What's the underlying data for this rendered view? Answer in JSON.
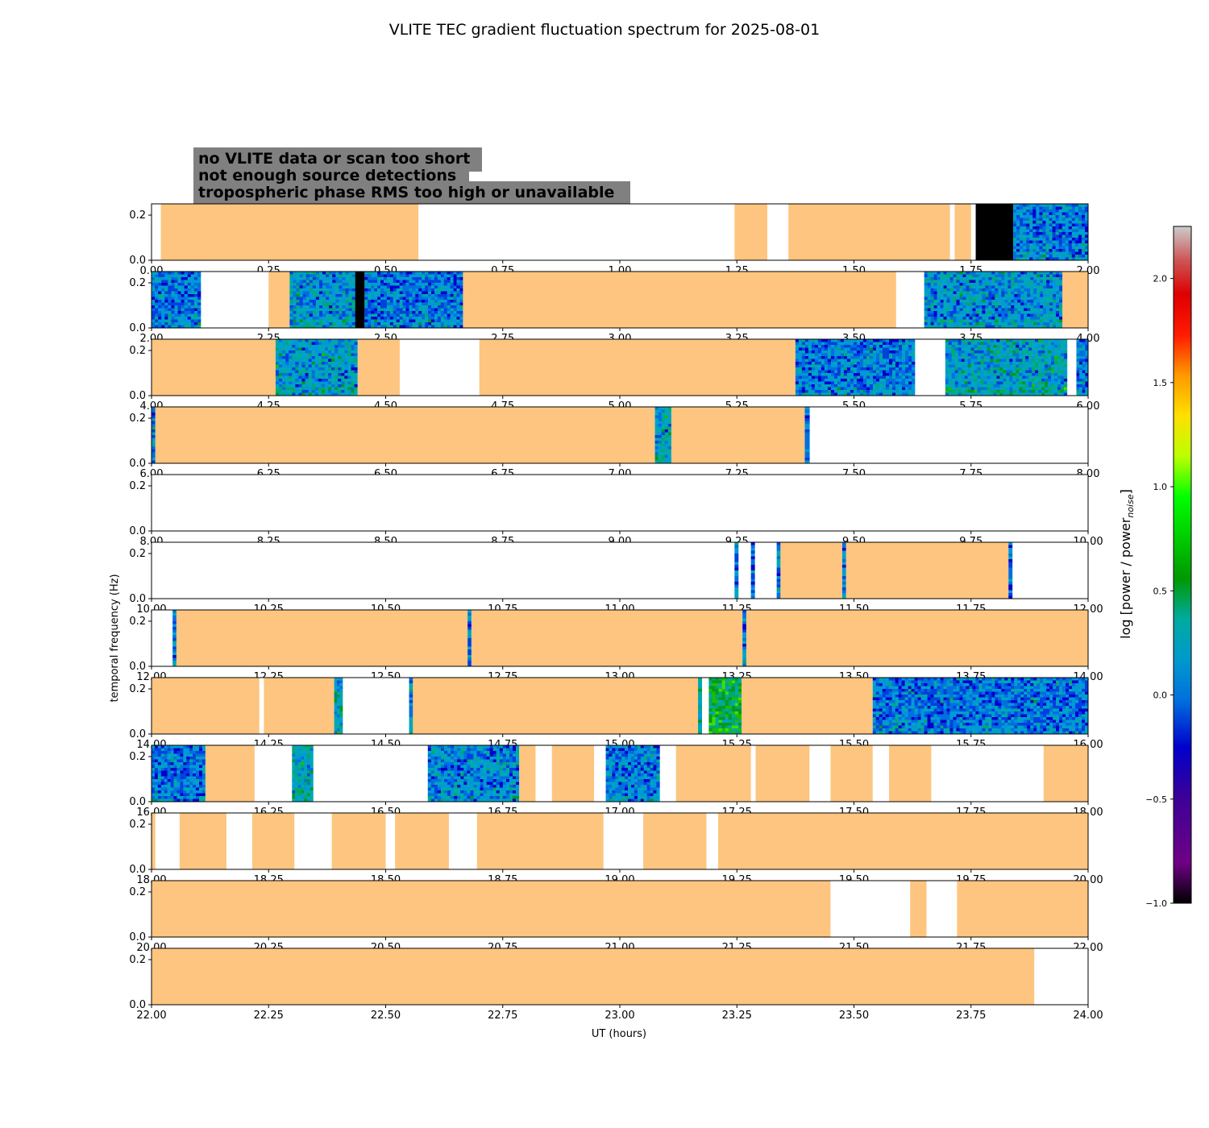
{
  "chart_data": {
    "type": "heatmap",
    "title": "VLITE TEC gradient fluctuation spectrum for 2025-08-01",
    "xlabel": "UT (hours)",
    "ylabel": "temporal frequency (Hz)",
    "ylim": [
      0.0,
      0.25
    ],
    "ytick_labels": [
      "0.0",
      "0.2"
    ],
    "ytick_values": [
      0.0,
      0.2
    ],
    "legend_items": [
      {
        "label": "no VLITE data or scan too short",
        "text_color": "#ffffff",
        "category": "white"
      },
      {
        "label": "not enough source detections",
        "text_color": "#000000",
        "category": "black"
      },
      {
        "label": "tropospheric phase RMS too high or unavailable",
        "text_color": "#fdc57f",
        "category": "orange"
      }
    ],
    "legend_box_color": "#808080",
    "colorbar": {
      "label_main": "log [power / power",
      "label_sub": "noise",
      "label_end": "]",
      "range": [
        -1.0,
        2.25
      ],
      "tick_values": [
        -1.0,
        -0.5,
        0.0,
        0.5,
        1.0,
        1.5,
        2.0
      ],
      "tick_labels": [
        "−1.0",
        "−0.5",
        "0.0",
        "0.5",
        "1.0",
        "1.5",
        "2.0"
      ],
      "colormap": "nipy_spectral"
    },
    "colors": {
      "no_data": "#ffffff",
      "few_detections": "#000000",
      "tropo_bad": "#fdc57f"
    },
    "panels": [
      {
        "start": 0,
        "end": 2,
        "tick_labels": [
          "0.00",
          "0.25",
          "0.50",
          "0.75",
          "1.00",
          "1.25",
          "1.50",
          "1.75",
          "2.00"
        ],
        "segments": [
          {
            "from": 0.02,
            "to": 0.57,
            "kind": "orange"
          },
          {
            "from": 1.245,
            "to": 1.315,
            "kind": "orange"
          },
          {
            "from": 1.36,
            "to": 1.705,
            "kind": "orange"
          },
          {
            "from": 1.715,
            "to": 1.75,
            "kind": "orange"
          },
          {
            "from": 1.76,
            "to": 1.84,
            "kind": "black"
          },
          {
            "from": 1.84,
            "to": 2.0,
            "kind": "spectrum",
            "level": 0.1
          }
        ]
      },
      {
        "start": 2,
        "end": 4,
        "tick_labels": [
          "2.00",
          "2.25",
          "2.50",
          "2.75",
          "3.00",
          "3.25",
          "3.50",
          "3.75",
          "4.00"
        ],
        "segments": [
          {
            "from": 2.0,
            "to": 2.105,
            "kind": "spectrum",
            "level": 0.05
          },
          {
            "from": 2.25,
            "to": 2.295,
            "kind": "orange"
          },
          {
            "from": 2.295,
            "to": 2.435,
            "kind": "spectrum",
            "level": 0.25
          },
          {
            "from": 2.435,
            "to": 2.455,
            "kind": "black"
          },
          {
            "from": 2.455,
            "to": 2.665,
            "kind": "spectrum",
            "level": 0.05
          },
          {
            "from": 2.665,
            "to": 3.59,
            "kind": "orange"
          },
          {
            "from": 3.65,
            "to": 3.945,
            "kind": "spectrum",
            "level": 0.25
          },
          {
            "from": 3.945,
            "to": 4.0,
            "kind": "orange"
          }
        ]
      },
      {
        "start": 4,
        "end": 6,
        "tick_labels": [
          "4.00",
          "4.25",
          "4.50",
          "4.75",
          "5.00",
          "5.25",
          "5.50",
          "5.75",
          "6.00"
        ],
        "segments": [
          {
            "from": 4.0,
            "to": 4.265,
            "kind": "orange"
          },
          {
            "from": 4.265,
            "to": 4.44,
            "kind": "spectrum",
            "level": 0.3
          },
          {
            "from": 4.44,
            "to": 4.53,
            "kind": "orange"
          },
          {
            "from": 4.7,
            "to": 5.375,
            "kind": "orange"
          },
          {
            "from": 5.375,
            "to": 5.63,
            "kind": "spectrum",
            "level": 0.1
          },
          {
            "from": 5.695,
            "to": 5.955,
            "kind": "spectrum",
            "level": 0.35
          },
          {
            "from": 5.975,
            "to": 6.0,
            "kind": "spectrum",
            "level": 0.1
          }
        ]
      },
      {
        "start": 6,
        "end": 8,
        "tick_labels": [
          "6.00",
          "6.25",
          "6.50",
          "6.75",
          "7.00",
          "7.25",
          "7.50",
          "7.75",
          "8.00"
        ],
        "segments": [
          {
            "from": 6.0,
            "to": 6.008,
            "kind": "spectrum",
            "level": 0.1
          },
          {
            "from": 6.008,
            "to": 7.075,
            "kind": "orange"
          },
          {
            "from": 7.075,
            "to": 7.11,
            "kind": "spectrum",
            "level": 0.35
          },
          {
            "from": 7.11,
            "to": 7.395,
            "kind": "orange"
          },
          {
            "from": 7.395,
            "to": 7.405,
            "kind": "spectrum",
            "level": 0.1
          }
        ]
      },
      {
        "start": 8,
        "end": 10,
        "tick_labels": [
          "8.00",
          "8.25",
          "8.50",
          "8.75",
          "9.00",
          "9.25",
          "9.50",
          "9.75",
          "10.00"
        ],
        "segments": []
      },
      {
        "start": 10,
        "end": 12,
        "tick_labels": [
          "10.00",
          "10.25",
          "10.50",
          "10.75",
          "11.00",
          "11.25",
          "11.50",
          "11.75",
          "12.00"
        ],
        "segments": [
          {
            "from": 11.245,
            "to": 11.253,
            "kind": "spectrum",
            "level": 0.05
          },
          {
            "from": 11.28,
            "to": 11.288,
            "kind": "spectrum",
            "level": 0.05
          },
          {
            "from": 11.335,
            "to": 11.343,
            "kind": "spectrum",
            "level": 0.1
          },
          {
            "from": 11.343,
            "to": 11.475,
            "kind": "orange"
          },
          {
            "from": 11.475,
            "to": 11.483,
            "kind": "spectrum",
            "level": 0.1
          },
          {
            "from": 11.483,
            "to": 11.83,
            "kind": "orange"
          },
          {
            "from": 11.83,
            "to": 11.838,
            "kind": "spectrum",
            "level": 0.1
          }
        ]
      },
      {
        "start": 12,
        "end": 14,
        "tick_labels": [
          "12.00",
          "12.25",
          "12.50",
          "12.75",
          "13.00",
          "13.25",
          "13.50",
          "13.75",
          "14.00"
        ],
        "segments": [
          {
            "from": 12.045,
            "to": 12.053,
            "kind": "spectrum",
            "level": 0.1
          },
          {
            "from": 12.053,
            "to": 12.675,
            "kind": "orange"
          },
          {
            "from": 12.675,
            "to": 12.683,
            "kind": "spectrum",
            "level": 0.05
          },
          {
            "from": 12.683,
            "to": 13.262,
            "kind": "orange"
          },
          {
            "from": 13.262,
            "to": 13.27,
            "kind": "spectrum",
            "level": 0.05
          },
          {
            "from": 13.27,
            "to": 14.0,
            "kind": "orange"
          }
        ]
      },
      {
        "start": 14,
        "end": 16,
        "tick_labels": [
          "14.00",
          "14.25",
          "14.50",
          "14.75",
          "15.00",
          "15.25",
          "15.50",
          "15.75",
          "16.00"
        ],
        "segments": [
          {
            "from": 14.0,
            "to": 14.23,
            "kind": "orange"
          },
          {
            "from": 14.24,
            "to": 14.39,
            "kind": "orange"
          },
          {
            "from": 14.39,
            "to": 14.408,
            "kind": "spectrum",
            "level": 0.4
          },
          {
            "from": 14.55,
            "to": 14.558,
            "kind": "spectrum",
            "level": 0.15
          },
          {
            "from": 14.558,
            "to": 15.167,
            "kind": "orange"
          },
          {
            "from": 15.167,
            "to": 15.175,
            "kind": "spectrum",
            "level": 0.5
          },
          {
            "from": 15.19,
            "to": 15.26,
            "kind": "spectrum",
            "level": 0.85
          },
          {
            "from": 15.26,
            "to": 15.54,
            "kind": "orange"
          },
          {
            "from": 15.54,
            "to": 16.0,
            "kind": "spectrum",
            "level": 0.05
          }
        ]
      },
      {
        "start": 16,
        "end": 18,
        "tick_labels": [
          "16.00",
          "16.25",
          "16.50",
          "16.75",
          "17.00",
          "17.25",
          "17.50",
          "17.75",
          "18.00"
        ],
        "segments": [
          {
            "from": 16.0,
            "to": 16.115,
            "kind": "spectrum",
            "level": 0.05
          },
          {
            "from": 16.115,
            "to": 16.22,
            "kind": "orange"
          },
          {
            "from": 16.3,
            "to": 16.345,
            "kind": "spectrum",
            "level": 0.45
          },
          {
            "from": 16.59,
            "to": 16.785,
            "kind": "spectrum",
            "level": 0.15
          },
          {
            "from": 16.785,
            "to": 16.82,
            "kind": "orange"
          },
          {
            "from": 16.855,
            "to": 16.945,
            "kind": "orange"
          },
          {
            "from": 16.97,
            "to": 17.085,
            "kind": "spectrum",
            "level": 0.1
          },
          {
            "from": 17.12,
            "to": 17.28,
            "kind": "orange"
          },
          {
            "from": 17.29,
            "to": 17.405,
            "kind": "orange"
          },
          {
            "from": 17.45,
            "to": 17.54,
            "kind": "orange"
          },
          {
            "from": 17.575,
            "to": 17.665,
            "kind": "orange"
          },
          {
            "from": 17.905,
            "to": 18.0,
            "kind": "orange"
          }
        ]
      },
      {
        "start": 18,
        "end": 20,
        "tick_labels": [
          "18.00",
          "18.25",
          "18.50",
          "18.75",
          "19.00",
          "19.25",
          "19.50",
          "19.75",
          "20.00"
        ],
        "segments": [
          {
            "from": 18.0,
            "to": 18.008,
            "kind": "orange"
          },
          {
            "from": 18.06,
            "to": 18.16,
            "kind": "orange"
          },
          {
            "from": 18.215,
            "to": 18.305,
            "kind": "orange"
          },
          {
            "from": 18.385,
            "to": 18.5,
            "kind": "orange"
          },
          {
            "from": 18.52,
            "to": 18.635,
            "kind": "orange"
          },
          {
            "from": 18.695,
            "to": 18.965,
            "kind": "orange"
          },
          {
            "from": 19.05,
            "to": 19.185,
            "kind": "orange"
          },
          {
            "from": 19.21,
            "to": 20.0,
            "kind": "orange"
          }
        ]
      },
      {
        "start": 20,
        "end": 22,
        "tick_labels": [
          "20.00",
          "20.25",
          "20.50",
          "20.75",
          "21.00",
          "21.25",
          "21.50",
          "21.75",
          "22.00"
        ],
        "segments": [
          {
            "from": 20.0,
            "to": 21.45,
            "kind": "orange"
          },
          {
            "from": 21.62,
            "to": 21.655,
            "kind": "orange"
          },
          {
            "from": 21.72,
            "to": 22.0,
            "kind": "orange"
          }
        ]
      },
      {
        "start": 22,
        "end": 24,
        "tick_labels": [
          "22.00",
          "22.25",
          "22.50",
          "22.75",
          "23.00",
          "23.25",
          "23.50",
          "23.75",
          "24.00"
        ],
        "segments": [
          {
            "from": 22.0,
            "to": 23.885,
            "kind": "orange"
          }
        ]
      }
    ]
  }
}
